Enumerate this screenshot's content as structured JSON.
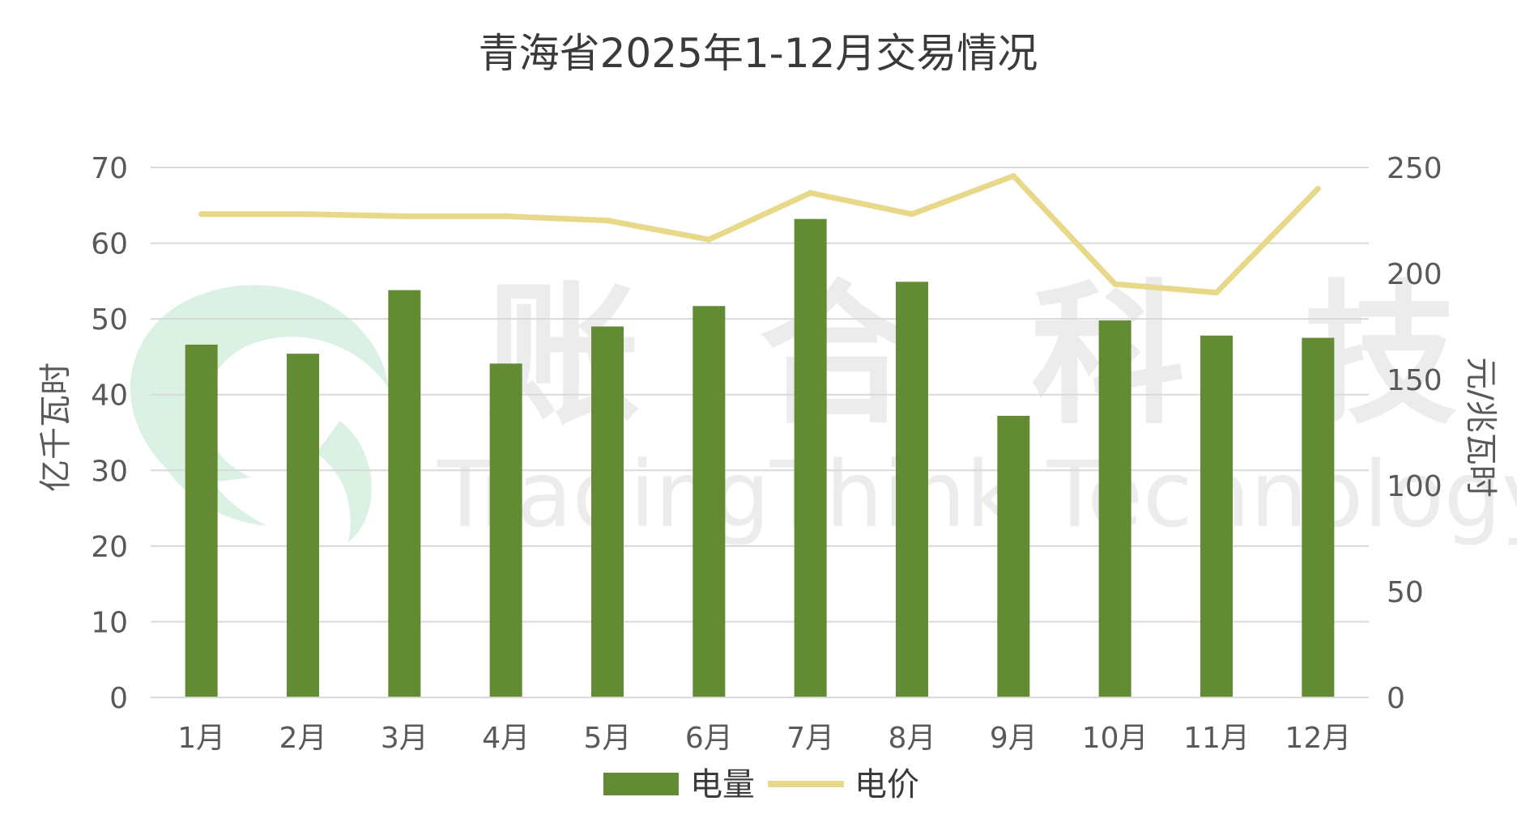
{
  "watermark": {
    "cn": "账 合 科 技",
    "en": "TradingThink Technology",
    "logo_color": "#3cb371"
  },
  "chart_data": {
    "type": "bar",
    "title": "青海省2025年1-12月交易情况",
    "categories": [
      "1月",
      "2月",
      "3月",
      "4月",
      "5月",
      "6月",
      "7月",
      "8月",
      "9月",
      "10月",
      "11月",
      "12月"
    ],
    "series": [
      {
        "name": "电量",
        "type": "bar",
        "axis": "left",
        "color": "#638b34",
        "values": [
          46.6,
          45.4,
          53.8,
          44.1,
          49.0,
          51.7,
          63.2,
          54.9,
          37.2,
          49.8,
          47.8,
          47.5
        ]
      },
      {
        "name": "电价",
        "type": "line",
        "axis": "right",
        "color": "#e8d98a",
        "values": [
          228,
          228,
          227,
          227,
          225,
          216,
          238,
          228,
          246,
          195,
          191,
          240
        ]
      }
    ],
    "ylabel": "亿千瓦时",
    "y2label": "元/兆瓦时",
    "ylim": [
      0,
      70
    ],
    "y2lim": [
      0,
      250
    ],
    "yticks": [
      0,
      10,
      20,
      30,
      40,
      50,
      60,
      70
    ],
    "y2ticks": [
      0,
      50,
      100,
      150,
      200,
      250
    ],
    "grid": true,
    "legend_position": "bottom"
  }
}
